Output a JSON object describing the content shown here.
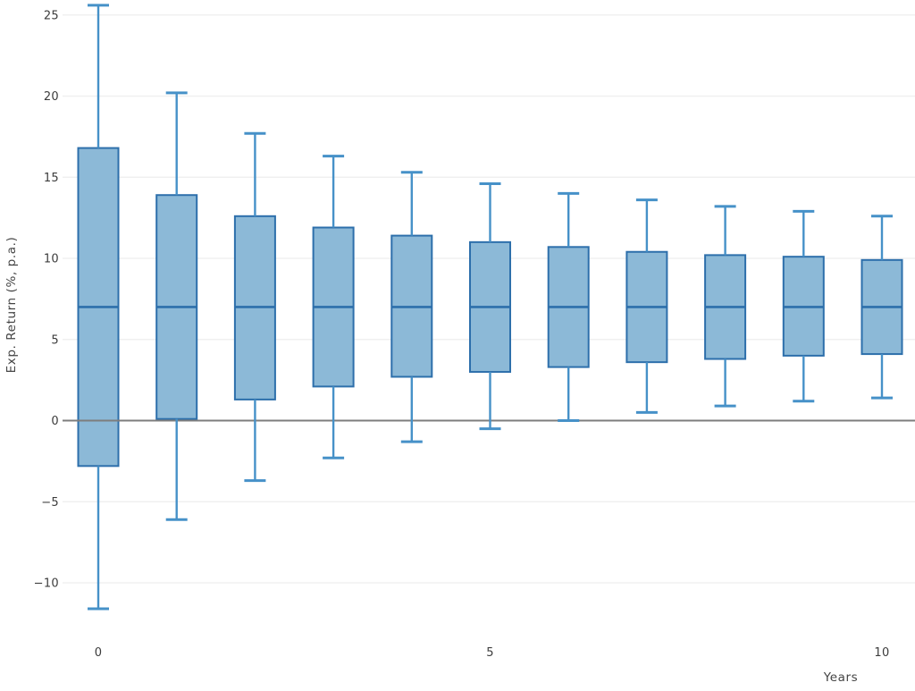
{
  "chart_data": {
    "type": "boxplot",
    "title": "",
    "xlabel": "Years",
    "ylabel": "Exp. Return (%, p.a.)",
    "legend": "none",
    "grid": true,
    "x_axis_years": [
      0,
      1,
      2,
      3,
      4,
      5,
      6,
      7,
      8,
      9,
      10
    ],
    "x_ticks": [
      {
        "value": 0,
        "label": "0"
      },
      {
        "value": 5,
        "label": "5"
      },
      {
        "value": 10,
        "label": "10"
      }
    ],
    "y_ticks": [
      {
        "value": -10,
        "label": "−10"
      },
      {
        "value": -5,
        "label": "−5"
      },
      {
        "value": 0,
        "label": "0"
      },
      {
        "value": 5,
        "label": "5"
      },
      {
        "value": 10,
        "label": "10"
      },
      {
        "value": 15,
        "label": "15"
      },
      {
        "value": 20,
        "label": "20"
      },
      {
        "value": 25,
        "label": "25"
      }
    ],
    "y_axis_range_approx": [
      -13,
      26
    ],
    "series": [
      {
        "year": 0,
        "whisker_low": -11.6,
        "q1": -2.8,
        "median": 7.0,
        "q3": 16.8,
        "whisker_high": 25.6
      },
      {
        "year": 1,
        "whisker_low": -6.1,
        "q1": 0.1,
        "median": 7.0,
        "q3": 13.9,
        "whisker_high": 20.2
      },
      {
        "year": 2,
        "whisker_low": -3.7,
        "q1": 1.3,
        "median": 7.0,
        "q3": 12.6,
        "whisker_high": 17.7
      },
      {
        "year": 3,
        "whisker_low": -2.3,
        "q1": 2.1,
        "median": 7.0,
        "q3": 11.9,
        "whisker_high": 16.3
      },
      {
        "year": 4,
        "whisker_low": -1.3,
        "q1": 2.7,
        "median": 7.0,
        "q3": 11.4,
        "whisker_high": 15.3
      },
      {
        "year": 5,
        "whisker_low": -0.5,
        "q1": 3.0,
        "median": 7.0,
        "q3": 11.0,
        "whisker_high": 14.6
      },
      {
        "year": 6,
        "whisker_low": 0.0,
        "q1": 3.3,
        "median": 7.0,
        "q3": 10.7,
        "whisker_high": 14.0
      },
      {
        "year": 7,
        "whisker_low": 0.5,
        "q1": 3.6,
        "median": 7.0,
        "q3": 10.4,
        "whisker_high": 13.6
      },
      {
        "year": 8,
        "whisker_low": 0.9,
        "q1": 3.8,
        "median": 7.0,
        "q3": 10.2,
        "whisker_high": 13.2
      },
      {
        "year": 9,
        "whisker_low": 1.2,
        "q1": 4.0,
        "median": 7.0,
        "q3": 10.1,
        "whisker_high": 12.9
      },
      {
        "year": 10,
        "whisker_low": 1.4,
        "q1": 4.1,
        "median": 7.0,
        "q3": 9.9,
        "whisker_high": 12.6
      }
    ],
    "colors": {
      "box_fill": "#8cb9d7",
      "box_stroke": "#2d6fab",
      "median_line": "#2d6fab",
      "whisker": "#4691c8",
      "zero_line": "#7d7d7d",
      "gridline": "#f0f0f0",
      "tick_text": "#3c3c3c",
      "axis_label_text": "#444444",
      "background": "#ffffff"
    }
  }
}
